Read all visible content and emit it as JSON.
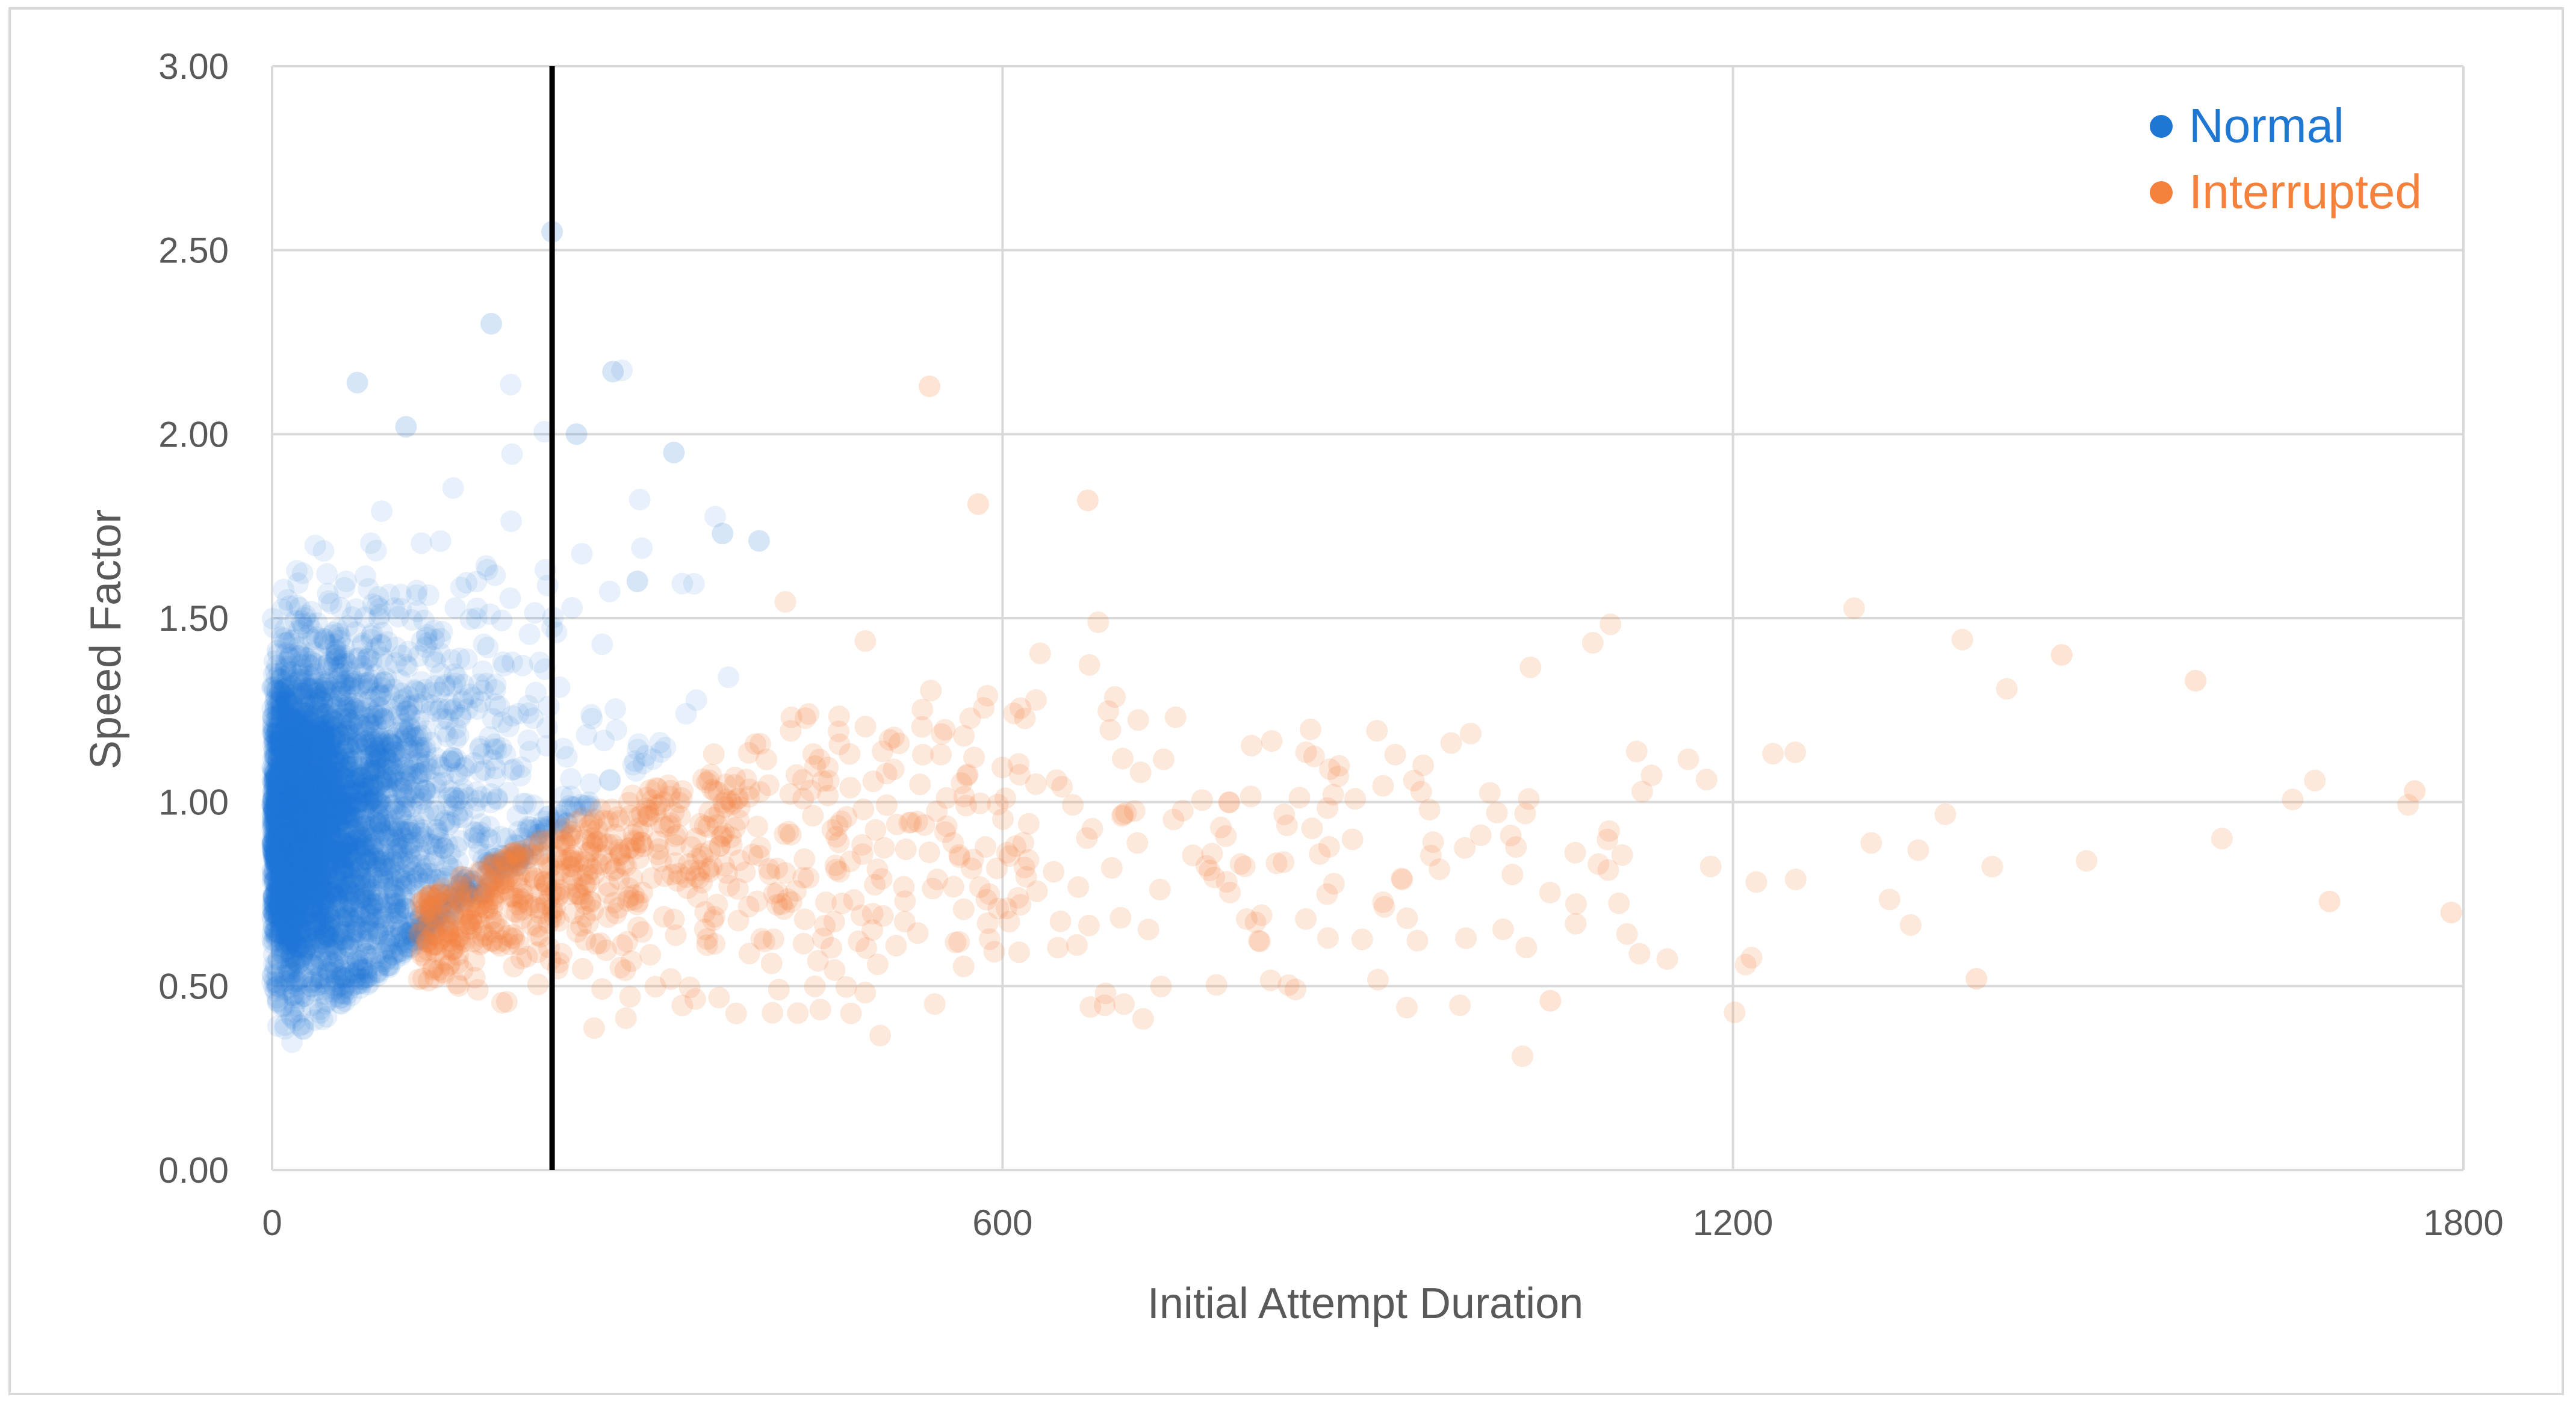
{
  "chart_data": {
    "type": "scatter",
    "title": "",
    "xlabel": "Initial Attempt Duration",
    "ylabel": "Speed Factor",
    "xlim": [
      0,
      1800
    ],
    "ylim": [
      0,
      3
    ],
    "x_ticks": [
      "0",
      "600",
      "1200",
      "1800"
    ],
    "y_ticks": [
      "0.00",
      "0.50",
      "1.00",
      "1.50",
      "2.00",
      "2.50",
      "3.00"
    ],
    "grid": true,
    "legend_position": "top-right",
    "reference_line": {
      "x": 230
    },
    "series": [
      {
        "name": "Normal",
        "color": "#1f77d4"
      },
      {
        "name": "Interrupted",
        "color": "#f4823c"
      }
    ],
    "colors": {
      "grid": "#d9d9d9",
      "axis_text": "#595959",
      "reference_line": "#000000",
      "frame": "#d9d9d9"
    }
  }
}
